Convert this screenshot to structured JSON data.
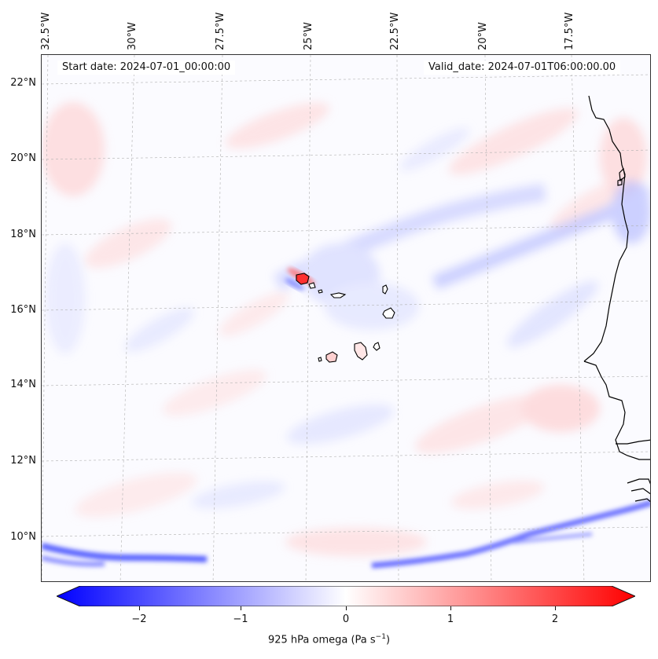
{
  "header": {
    "start_date": "Start date: 2024-07-01_00:00:00",
    "valid_date": "Valid_date: 2024-07-01T06:00:00.00"
  },
  "map": {
    "lon_labels": [
      "32.5°W",
      "30°W",
      "27.5°W",
      "25°W",
      "22.5°W",
      "20°W",
      "17.5°W"
    ],
    "lat_labels": [
      "22°N",
      "20°N",
      "18°N",
      "16°N",
      "14°N",
      "12°N",
      "10°N"
    ],
    "colors": {
      "positive": "#ff0000",
      "negative": "#0000ff",
      "neutral": "#ffffff"
    }
  },
  "colorbar": {
    "ticks": [
      "−2",
      "−1",
      "0",
      "1",
      "2"
    ],
    "tick_values": [
      -2,
      -1,
      0,
      1,
      2
    ],
    "range": [
      -2.5,
      2.5
    ],
    "label_prefix": "925 hPa omega (Pa s",
    "label_exp": "−1",
    "label_suffix": ")"
  }
}
